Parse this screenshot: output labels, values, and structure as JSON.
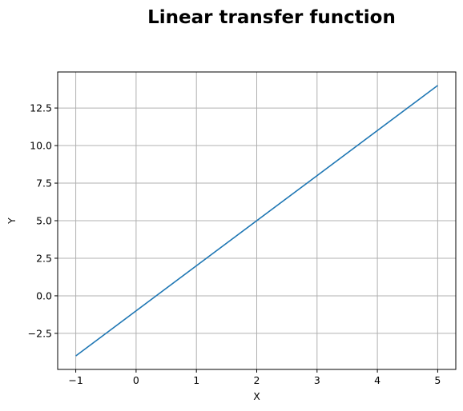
{
  "chart_data": {
    "type": "line",
    "title": "Linear transfer function",
    "xlabel": "X",
    "ylabel": "Y",
    "xlim": [
      -1.3,
      5.3
    ],
    "ylim": [
      -4.9,
      14.9
    ],
    "x_ticks": [
      -1,
      0,
      1,
      2,
      3,
      4,
      5
    ],
    "x_tick_labels": [
      "−1",
      "0",
      "1",
      "2",
      "3",
      "4",
      "5"
    ],
    "y_ticks": [
      -2.5,
      0.0,
      2.5,
      5.0,
      7.5,
      10.0,
      12.5
    ],
    "y_tick_labels": [
      "−2.5",
      "0.0",
      "2.5",
      "5.0",
      "7.5",
      "10.0",
      "12.5"
    ],
    "grid": true,
    "series": [
      {
        "color": "#1f77b4",
        "x": [
          -1,
          5
        ],
        "y": [
          -4,
          14
        ]
      }
    ]
  }
}
